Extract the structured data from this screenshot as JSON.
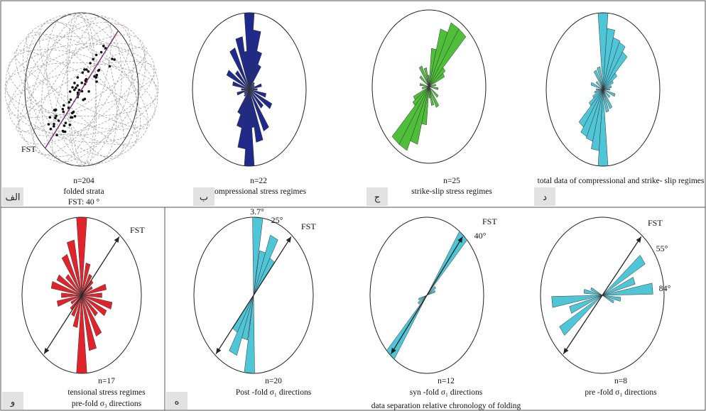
{
  "colors": {
    "blue": "#1f2a8c",
    "green": "#4fbf3a",
    "cyan": "#4fc6d8",
    "red": "#e3232b",
    "grey": "#9a9a9a",
    "purple": "#7a2a7a",
    "tagbg": "#e2e2e2"
  },
  "chart_data": [
    {
      "type": "rose",
      "id": "a",
      "tag": "الف",
      "caption": [
        "n=204",
        "folded strata",
        "FST: 40 °"
      ],
      "fst_label": "FST",
      "fst_az": 40,
      "color": "grey",
      "note": "stereonet of folded strata poles"
    },
    {
      "type": "rose",
      "id": "b",
      "tag": "ب",
      "caption": [
        "n=22",
        "compressional stress regimes"
      ],
      "color": "blue",
      "petals": [
        [
          0,
          1.0
        ],
        [
          10,
          0.78
        ],
        [
          20,
          0.52
        ],
        [
          30,
          0.36
        ],
        [
          45,
          0.12
        ],
        [
          60,
          0.1
        ],
        [
          75,
          0.22
        ],
        [
          90,
          0.14
        ],
        [
          105,
          0.3
        ],
        [
          120,
          0.44
        ],
        [
          135,
          0.32
        ],
        [
          150,
          0.6
        ],
        [
          165,
          0.7
        ],
        [
          170,
          0.5
        ]
      ]
    },
    {
      "type": "rose",
      "id": "c",
      "tag": "ج",
      "caption": [
        "n=25",
        "strike-slip stress regimes"
      ],
      "color": "green",
      "petals": [
        [
          10,
          0.5
        ],
        [
          20,
          0.78
        ],
        [
          30,
          0.92
        ],
        [
          40,
          0.92
        ],
        [
          50,
          0.35
        ],
        [
          60,
          0.3
        ],
        [
          80,
          0.12
        ],
        [
          100,
          0.16
        ],
        [
          130,
          0.2
        ],
        [
          150,
          0.3
        ],
        [
          165,
          0.25
        ],
        [
          175,
          0.15
        ]
      ]
    },
    {
      "type": "rose",
      "id": "d",
      "tag": "د",
      "caption": [
        "total data of compressional and strike- slip  regimes"
      ],
      "color": "cyan",
      "petals": [
        [
          0,
          1.0
        ],
        [
          10,
          0.8
        ],
        [
          20,
          0.7
        ],
        [
          30,
          0.68
        ],
        [
          40,
          0.6
        ],
        [
          50,
          0.3
        ],
        [
          60,
          0.2
        ],
        [
          75,
          0.15
        ],
        [
          90,
          0.12
        ],
        [
          110,
          0.22
        ],
        [
          130,
          0.15
        ],
        [
          150,
          0.28
        ],
        [
          165,
          0.3
        ]
      ]
    },
    {
      "type": "rose",
      "id": "e",
      "tag": "و",
      "caption": [
        "n=17",
        "tensional stress regimes",
        "pre-fold σ₃ directions"
      ],
      "color": "red",
      "fst_label": "FST",
      "fst_az": 40,
      "petals": [
        [
          0,
          1.0
        ],
        [
          15,
          0.42
        ],
        [
          30,
          0.3
        ],
        [
          45,
          0.25
        ],
        [
          60,
          0.2
        ],
        [
          75,
          0.42
        ],
        [
          90,
          0.34
        ],
        [
          105,
          0.52
        ],
        [
          120,
          0.46
        ],
        [
          135,
          0.35
        ],
        [
          150,
          0.58
        ],
        [
          165,
          0.72
        ]
      ]
    },
    {
      "type": "rose",
      "id": "f",
      "caption": [
        "n=20",
        "Post -fold σ₁ directions"
      ],
      "color": "cyan",
      "fst_label": "FST",
      "fst_az": 40,
      "angle_labels": [
        "3.7°",
        "25°"
      ],
      "petals": [
        [
          4,
          1.0
        ],
        [
          15,
          0.58
        ],
        [
          25,
          0.82
        ],
        [
          35,
          0.55
        ]
      ]
    },
    {
      "type": "rose",
      "id": "g",
      "caption": [
        "n=12",
        "syn -fold σ₁ directions"
      ],
      "color": "cyan",
      "fst_label": "FST",
      "fst_az": 40,
      "angle_labels": [
        "40°"
      ],
      "petals": [
        [
          40,
          1.0
        ],
        [
          55,
          0.18
        ],
        [
          70,
          0.15
        ]
      ]
    },
    {
      "type": "rose",
      "id": "h",
      "caption": [
        "n=8",
        "pre -fold σ₁ directions"
      ],
      "color": "cyan",
      "fst_label": "FST",
      "fst_az": 40,
      "angle_labels": [
        "55°",
        "84°"
      ],
      "petals": [
        [
          55,
          0.8
        ],
        [
          70,
          0.55
        ],
        [
          84,
          0.82
        ],
        [
          100,
          0.3
        ],
        [
          115,
          0.2
        ]
      ]
    }
  ],
  "section": {
    "tag": "ه",
    "caption": "data separation relative chronology of folding"
  }
}
